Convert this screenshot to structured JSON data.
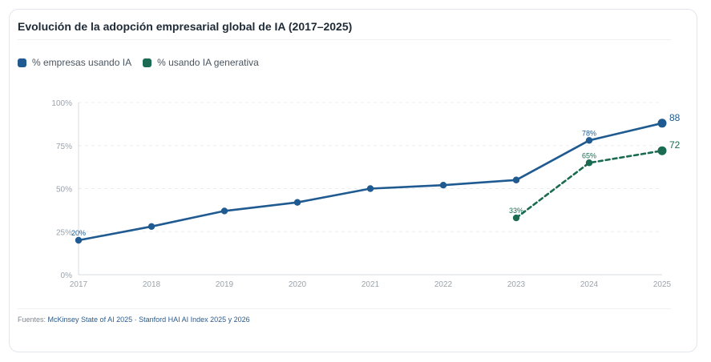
{
  "card": {
    "title": "Evolución de la adopción empresarial global de IA (2017–2025)"
  },
  "legend": [
    {
      "label": "% empresas usando IA",
      "color": "#1f5a91"
    },
    {
      "label": "% usando IA generativa",
      "color": "#1a6b52"
    }
  ],
  "footer": {
    "prefix": "Fuentes: ",
    "sources": "McKinsey State of AI 2025 · Stanford HAI AI Index 2025 y 2026"
  },
  "chart_data": {
    "type": "line",
    "title": "Evolución de la adopción empresarial global de IA (2017–2025)",
    "xlabel": "",
    "ylabel": "",
    "categories": [
      "2017",
      "2018",
      "2019",
      "2020",
      "2021",
      "2022",
      "2023",
      "2024",
      "2025"
    ],
    "ylim": [
      0,
      100
    ],
    "yticks": [
      0,
      25,
      50,
      75,
      100
    ],
    "ytick_labels": [
      "0%",
      "25%",
      "50%",
      "75%",
      "100%"
    ],
    "grid": true,
    "legend_position": "top-left",
    "series": [
      {
        "name": "% empresas usando IA",
        "color": "#1f5a91",
        "style": "solid",
        "values": [
          20,
          28,
          37,
          42,
          50,
          52,
          55,
          78,
          88
        ],
        "point_labels": [
          "20%",
          null,
          null,
          null,
          null,
          null,
          null,
          "78%",
          null
        ],
        "end_label": "88"
      },
      {
        "name": "% usando IA generativa",
        "color": "#1a6b52",
        "style": "dashed",
        "values": [
          null,
          null,
          null,
          null,
          null,
          null,
          33,
          65,
          72
        ],
        "point_labels": [
          null,
          null,
          null,
          null,
          null,
          null,
          "33%",
          "65%",
          null
        ],
        "end_label": "72"
      }
    ]
  }
}
